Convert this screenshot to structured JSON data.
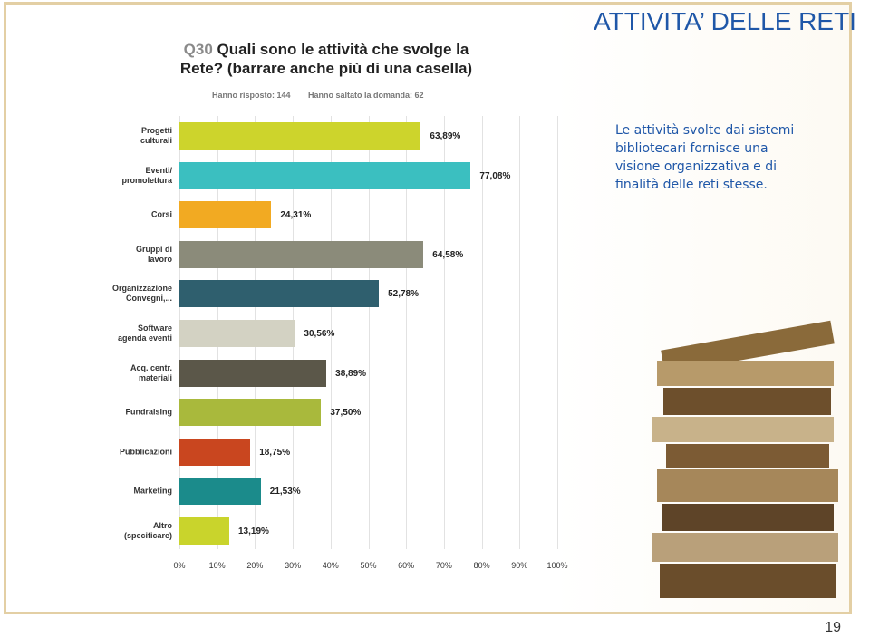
{
  "slide_title": "ATTIVITA’ DELLE RETI",
  "description": "Le attività svolte dai sistemi bibliotecari fornisce una visione organizzativa e di finalità delle reti stesse.",
  "page_number": "19",
  "chart_data": {
    "type": "barh",
    "question_id": "Q30",
    "title": "Quali sono le attività che svolge la Rete? (barrare anche più di una casella)",
    "answered": "Hanno risposto: 144",
    "skipped": "Hanno saltato la domanda: 62",
    "categories": [
      "Progetti\nculturali",
      "Eventi/\npromolettura",
      "Corsi",
      "Gruppi di\nlavoro",
      "Organizzazione\nConvegni,...",
      "Software\nagenda eventi",
      "Acq. centr.\nmateriali",
      "Fundraising",
      "Pubblicazioni",
      "Marketing",
      "Altro\n(specificare)"
    ],
    "values": [
      63.89,
      77.08,
      24.31,
      64.58,
      52.78,
      30.56,
      38.89,
      37.5,
      18.75,
      21.53,
      13.19
    ],
    "value_labels": [
      "63,89%",
      "77,08%",
      "24,31%",
      "64,58%",
      "52,78%",
      "30,56%",
      "38,89%",
      "37,50%",
      "18,75%",
      "21,53%",
      "13,19%"
    ],
    "colors": [
      "#cdd42c",
      "#3bbfc0",
      "#f2aa22",
      "#8b8b7a",
      "#2f5f6e",
      "#d3d2c3",
      "#5b5749",
      "#a9b93c",
      "#c9461f",
      "#1b8b8b",
      "#c9d42c"
    ],
    "xlim": [
      0,
      100
    ],
    "xticks": [
      {
        "value": 0,
        "label": "0%"
      },
      {
        "value": 10,
        "label": "10%"
      },
      {
        "value": 20,
        "label": "20%"
      },
      {
        "value": 30,
        "label": "30%"
      },
      {
        "value": 40,
        "label": "40%"
      },
      {
        "value": 50,
        "label": "50%"
      },
      {
        "value": 60,
        "label": "60%"
      },
      {
        "value": 70,
        "label": "70%"
      },
      {
        "value": 80,
        "label": "80%"
      },
      {
        "value": 90,
        "label": "90%"
      },
      {
        "value": 100,
        "label": "100%"
      }
    ],
    "grid": true
  }
}
